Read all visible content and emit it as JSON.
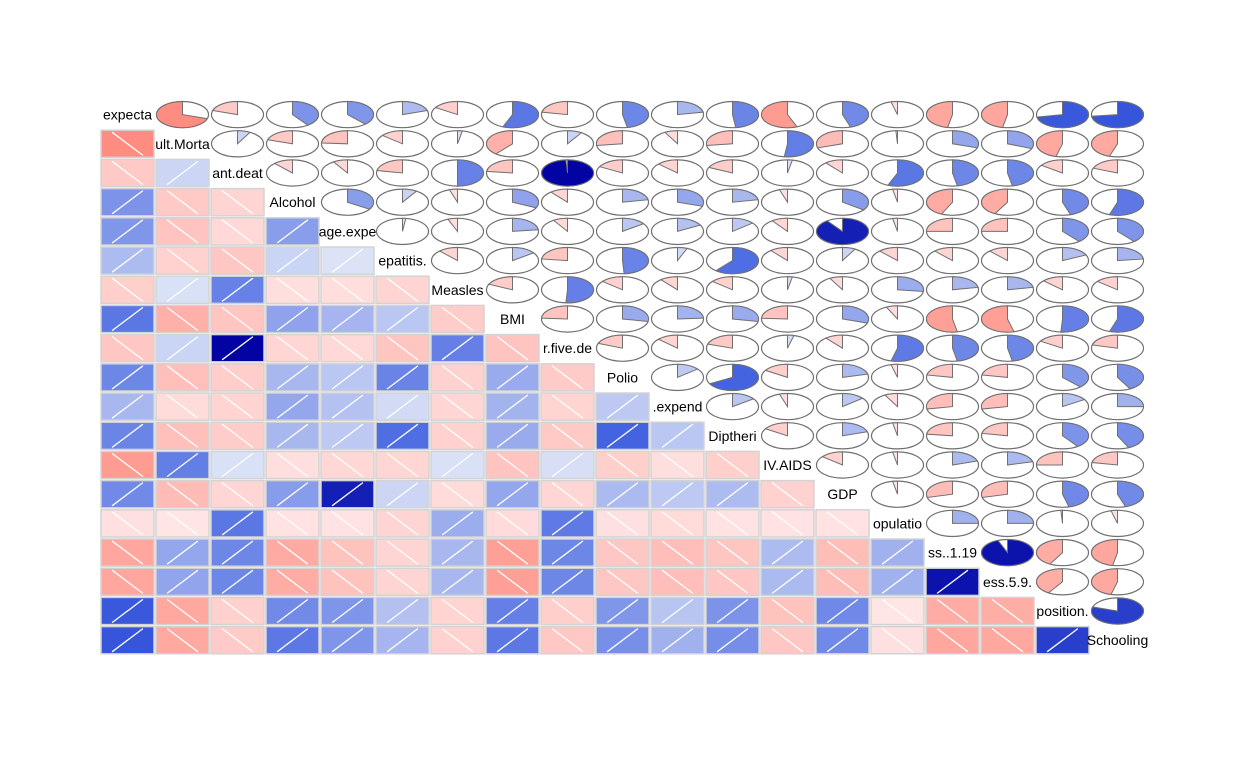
{
  "chart_data": {
    "type": "heatmap",
    "style": "corrgram",
    "lower_panel": "shade",
    "upper_panel": "pie",
    "diagonal": "variable names",
    "variables": [
      "expecta",
      "ult.Morta",
      "ant.deat",
      "Alcohol",
      "age.expe",
      "epatitis.",
      "Measles",
      "BMI",
      "r.five.de",
      "Polio",
      ".expend",
      "Diptheri",
      "IV.AIDS",
      "GDP",
      "opulatio",
      "ss..1.19",
      "ess.5.9.",
      "position.",
      "Schooling"
    ],
    "color_scale": {
      "negative_strong": "#0000A0",
      "negative_mid": "#3D5EE0",
      "negative_weak": "#E1E7F7",
      "positive_weak": "#FFE6E6",
      "positive_mid": "#FF8C80",
      "positive_strong": "#FF4040",
      "grid": "#D3D3D3",
      "pie_outline": "#707070"
    },
    "matrix": [
      [
        1.0,
        -0.7,
        -0.2,
        0.4,
        0.38,
        0.2,
        -0.16,
        0.56,
        -0.22,
        0.47,
        0.22,
        0.48,
        -0.56,
        0.45,
        -0.04,
        -0.47,
        -0.47,
        0.72,
        0.73
      ],
      [
        -0.7,
        1.0,
        0.08,
        -0.2,
        -0.24,
        -0.14,
        0.03,
        -0.39,
        0.09,
        -0.27,
        -0.08,
        -0.27,
        0.52,
        -0.3,
        -0.01,
        0.3,
        0.31,
        -0.46,
        -0.45
      ],
      [
        -0.2,
        0.08,
        1.0,
        -0.12,
        -0.09,
        -0.22,
        0.5,
        -0.23,
        0.99,
        -0.17,
        -0.13,
        -0.18,
        0.03,
        -0.11,
        0.56,
        0.47,
        0.47,
        -0.15,
        -0.19
      ],
      [
        0.4,
        -0.2,
        -0.12,
        1.0,
        0.34,
        0.09,
        -0.05,
        0.32,
        -0.11,
        0.22,
        0.3,
        0.22,
        -0.05,
        0.35,
        -0.03,
        -0.43,
        -0.42,
        0.45,
        0.55
      ],
      [
        0.38,
        -0.24,
        -0.09,
        0.34,
        1.0,
        0.02,
        -0.06,
        0.23,
        -0.09,
        0.15,
        0.17,
        0.14,
        -0.1,
        0.9,
        -0.03,
        -0.25,
        -0.25,
        0.39,
        0.39
      ],
      [
        0.2,
        -0.14,
        -0.22,
        0.09,
        0.02,
        1.0,
        -0.12,
        0.15,
        -0.23,
        0.49,
        0.06,
        0.61,
        -0.11,
        0.08,
        -0.12,
        -0.12,
        -0.12,
        0.18,
        0.23
      ],
      [
        -0.16,
        0.03,
        0.5,
        -0.05,
        -0.06,
        -0.12,
        1.0,
        -0.18,
        0.51,
        -0.14,
        -0.11,
        -0.14,
        0.03,
        -0.08,
        0.27,
        0.22,
        0.22,
        -0.13,
        -0.14
      ],
      [
        0.56,
        -0.39,
        -0.23,
        0.32,
        0.23,
        0.15,
        -0.18,
        1.0,
        -0.24,
        0.28,
        0.24,
        0.28,
        -0.24,
        0.3,
        -0.07,
        -0.53,
        -0.54,
        0.51,
        0.55
      ],
      [
        -0.22,
        0.09,
        0.99,
        -0.11,
        -0.09,
        -0.23,
        0.51,
        -0.24,
        1.0,
        -0.19,
        -0.13,
        -0.2,
        0.04,
        -0.11,
        0.54,
        0.47,
        0.47,
        -0.16,
        -0.21
      ],
      [
        0.47,
        -0.27,
        -0.17,
        0.22,
        0.15,
        0.49,
        -0.14,
        0.28,
        -0.19,
        1.0,
        0.14,
        0.67,
        -0.16,
        0.21,
        -0.04,
        -0.22,
        -0.22,
        0.38,
        0.42
      ],
      [
        0.22,
        -0.08,
        -0.13,
        0.3,
        0.17,
        0.06,
        -0.11,
        0.24,
        -0.13,
        0.14,
        1.0,
        0.15,
        -0.05,
        0.14,
        -0.08,
        -0.28,
        -0.28,
        0.16,
        0.25
      ],
      [
        0.48,
        -0.27,
        -0.18,
        0.22,
        0.14,
        0.61,
        -0.14,
        0.28,
        -0.2,
        0.67,
        0.15,
        1.0,
        -0.16,
        0.2,
        -0.03,
        -0.23,
        -0.22,
        0.4,
        0.43
      ],
      [
        -0.56,
        0.52,
        0.03,
        -0.05,
        -0.1,
        -0.11,
        0.03,
        -0.24,
        0.04,
        -0.16,
        -0.05,
        -0.16,
        1.0,
        -0.14,
        -0.03,
        0.2,
        0.21,
        -0.25,
        -0.22
      ],
      [
        0.45,
        -0.3,
        -0.11,
        0.35,
        0.9,
        0.08,
        -0.08,
        0.3,
        -0.11,
        0.21,
        0.14,
        0.2,
        -0.14,
        1.0,
        -0.03,
        -0.29,
        -0.29,
        0.46,
        0.45
      ],
      [
        -0.04,
        -0.01,
        0.56,
        -0.03,
        -0.03,
        -0.12,
        0.27,
        -0.07,
        0.54,
        -0.04,
        -0.08,
        -0.03,
        -0.03,
        -0.03,
        1.0,
        0.25,
        0.25,
        -0.01,
        -0.04
      ],
      [
        -0.47,
        0.3,
        0.47,
        -0.43,
        -0.25,
        -0.12,
        0.22,
        -0.53,
        0.47,
        -0.22,
        -0.28,
        -0.23,
        0.2,
        -0.29,
        0.25,
        1.0,
        0.94,
        -0.42,
        -0.47
      ],
      [
        -0.47,
        0.31,
        0.47,
        -0.42,
        -0.25,
        -0.12,
        0.22,
        -0.54,
        0.47,
        -0.22,
        -0.28,
        -0.22,
        0.21,
        -0.29,
        0.25,
        0.94,
        1.0,
        -0.41,
        -0.46
      ],
      [
        0.72,
        -0.46,
        -0.15,
        0.45,
        0.39,
        0.18,
        -0.13,
        0.51,
        -0.16,
        0.38,
        0.16,
        0.4,
        -0.25,
        0.46,
        -0.01,
        -0.42,
        -0.41,
        1.0,
        0.8
      ],
      [
        0.73,
        -0.45,
        -0.19,
        0.55,
        0.39,
        0.23,
        -0.14,
        0.55,
        -0.21,
        0.42,
        0.25,
        0.43,
        -0.22,
        0.45,
        -0.04,
        -0.47,
        -0.46,
        0.8,
        1.0
      ]
    ]
  }
}
